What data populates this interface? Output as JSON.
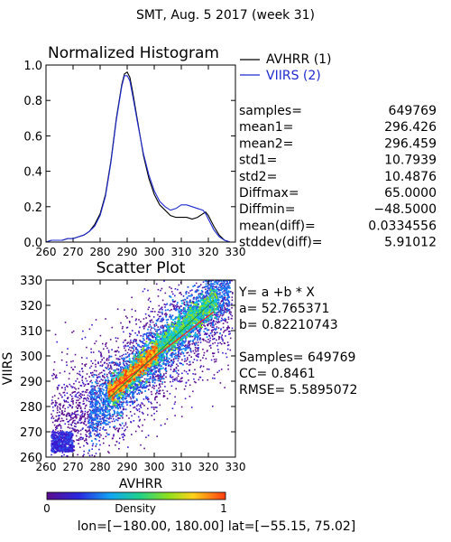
{
  "page_title": "SMT,  Aug. 5 2017 (week 31)",
  "footer": "lon=[−180.00, 180.00] lat=[−55.15, 75.02]",
  "colors": {
    "avhrr": "#000000",
    "viirs": "#1f2bd0",
    "fit_line": "#ff2020",
    "identity_line": "#1f8f3a"
  },
  "stats": [
    {
      "label": "samples=",
      "value": "649769"
    },
    {
      "label": "mean1=",
      "value": "296.426"
    },
    {
      "label": "mean2=",
      "value": "296.459"
    },
    {
      "label": "std1=",
      "value": "10.7939"
    },
    {
      "label": "std2=",
      "value": "10.4876"
    },
    {
      "label": "Diffmax=",
      "value": "65.0000"
    },
    {
      "label": "Diffmin=",
      "value": "−48.5000"
    },
    {
      "label": "mean(diff)=",
      "value": "0.0334556"
    },
    {
      "label": "stddev(diff)=",
      "value": "5.91012"
    }
  ],
  "regression": {
    "equation": "Y= a +b * X",
    "a_text": "a= 52.765371",
    "b_text": "b= 0.82210743",
    "samples_text": "Samples= 649769",
    "cc_text": "CC=  0.8461",
    "rmse_text": "RMSE= 5.5895072"
  },
  "colorbar": {
    "label": "Density",
    "min_label": "0",
    "max_label": "1"
  },
  "chart_data": [
    {
      "type": "line",
      "title": "Normalized Histogram",
      "xlabel": "",
      "ylabel": "",
      "xlim": [
        260,
        330
      ],
      "ylim": [
        0,
        1
      ],
      "xticks": [
        260,
        270,
        280,
        290,
        300,
        310,
        320,
        330
      ],
      "yticks": [
        0.0,
        0.2,
        0.4,
        0.6,
        0.8,
        1.0
      ],
      "xtick_labels": [
        "260",
        "270",
        "280",
        "290",
        "300",
        "310",
        "320",
        "330"
      ],
      "ytick_labels": [
        "0.0",
        "0.2",
        "0.4",
        "0.6",
        "0.8",
        "1.0"
      ],
      "legend_position": "right",
      "series": [
        {
          "name": "AVHRR (1)",
          "color": "#000000",
          "x": [
            260,
            262,
            264,
            266,
            268,
            270,
            272,
            274,
            276,
            278,
            280,
            282,
            284,
            286,
            288,
            289,
            290,
            291,
            292,
            294,
            296,
            298,
            300,
            302,
            304,
            306,
            308,
            310,
            312,
            314,
            316,
            318,
            319,
            320,
            322,
            324,
            326,
            328,
            330
          ],
          "y": [
            0.0,
            0.01,
            0.01,
            0.01,
            0.02,
            0.02,
            0.03,
            0.04,
            0.06,
            0.1,
            0.16,
            0.27,
            0.46,
            0.7,
            0.89,
            0.95,
            0.96,
            0.93,
            0.85,
            0.67,
            0.49,
            0.36,
            0.27,
            0.21,
            0.18,
            0.15,
            0.14,
            0.14,
            0.14,
            0.13,
            0.14,
            0.16,
            0.17,
            0.15,
            0.09,
            0.04,
            0.01,
            0.0,
            0.0
          ]
        },
        {
          "name": "VIIRS (2)",
          "color": "#1f2bd0",
          "x": [
            260,
            262,
            264,
            266,
            268,
            270,
            272,
            274,
            276,
            278,
            280,
            282,
            284,
            286,
            288,
            289,
            290,
            291,
            292,
            294,
            296,
            298,
            300,
            302,
            304,
            306,
            308,
            310,
            312,
            314,
            316,
            318,
            319,
            320,
            322,
            324,
            326,
            328,
            330
          ],
          "y": [
            0.0,
            0.01,
            0.01,
            0.01,
            0.02,
            0.02,
            0.03,
            0.04,
            0.06,
            0.09,
            0.15,
            0.26,
            0.45,
            0.69,
            0.88,
            0.94,
            0.94,
            0.91,
            0.83,
            0.66,
            0.5,
            0.38,
            0.29,
            0.23,
            0.2,
            0.18,
            0.19,
            0.21,
            0.21,
            0.2,
            0.19,
            0.18,
            0.16,
            0.13,
            0.07,
            0.03,
            0.01,
            0.0,
            0.0
          ]
        }
      ]
    },
    {
      "type": "scatter",
      "title": "Scatter Plot",
      "xlabel": "AVHRR",
      "ylabel": "VIIRS",
      "xlim": [
        260,
        330
      ],
      "ylim": [
        260,
        330
      ],
      "xticks": [
        260,
        270,
        280,
        290,
        300,
        310,
        320,
        330
      ],
      "yticks": [
        260,
        270,
        280,
        290,
        300,
        310,
        320,
        330
      ],
      "xtick_labels": [
        "260",
        "270",
        "280",
        "290",
        "300",
        "310",
        "320",
        "330"
      ],
      "ytick_labels": [
        "260",
        "270",
        "280",
        "290",
        "300",
        "310",
        "320",
        "330"
      ],
      "color_scale": "density 0–1, purple→blue→cyan→green→yellow→orange→red",
      "fit_line": {
        "a": 52.765371,
        "b": 0.82210743,
        "x_range": [
          283,
          322
        ]
      },
      "identity_line": {
        "x_range": [
          283,
          322
        ]
      },
      "density_ridge": {
        "x": [
          284,
          286,
          288,
          290,
          292,
          294,
          296,
          298,
          300,
          302,
          304,
          306,
          308,
          310,
          312,
          314,
          316,
          318,
          320,
          322
        ],
        "y_center": [
          286,
          287.5,
          289,
          291,
          293,
          295,
          297,
          299,
          301,
          303,
          305,
          307,
          309,
          311,
          313,
          314.5,
          316,
          318,
          320,
          321
        ]
      }
    }
  ]
}
